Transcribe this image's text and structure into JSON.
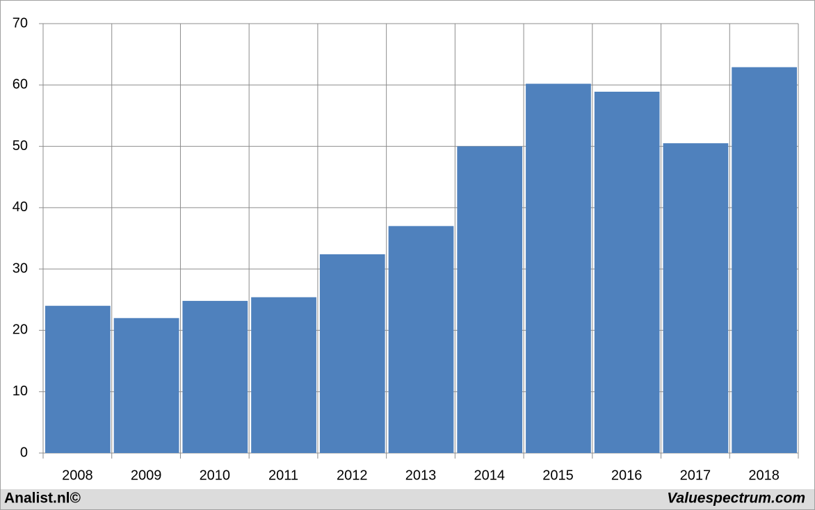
{
  "chart_data": {
    "type": "bar",
    "categories": [
      "2008",
      "2009",
      "2010",
      "2011",
      "2012",
      "2013",
      "2014",
      "2015",
      "2016",
      "2017",
      "2018"
    ],
    "values": [
      24,
      22,
      24.8,
      25.4,
      32.4,
      37,
      50,
      60.2,
      58.9,
      50.5,
      62.9
    ],
    "color": "#4f81bd",
    "ylim": [
      0,
      70
    ],
    "yticks": [
      0,
      10,
      20,
      30,
      40,
      50,
      60,
      70
    ],
    "grid": true,
    "footer_left": "Analist.nl©",
    "footer_right": "Valuespectrum.com"
  }
}
